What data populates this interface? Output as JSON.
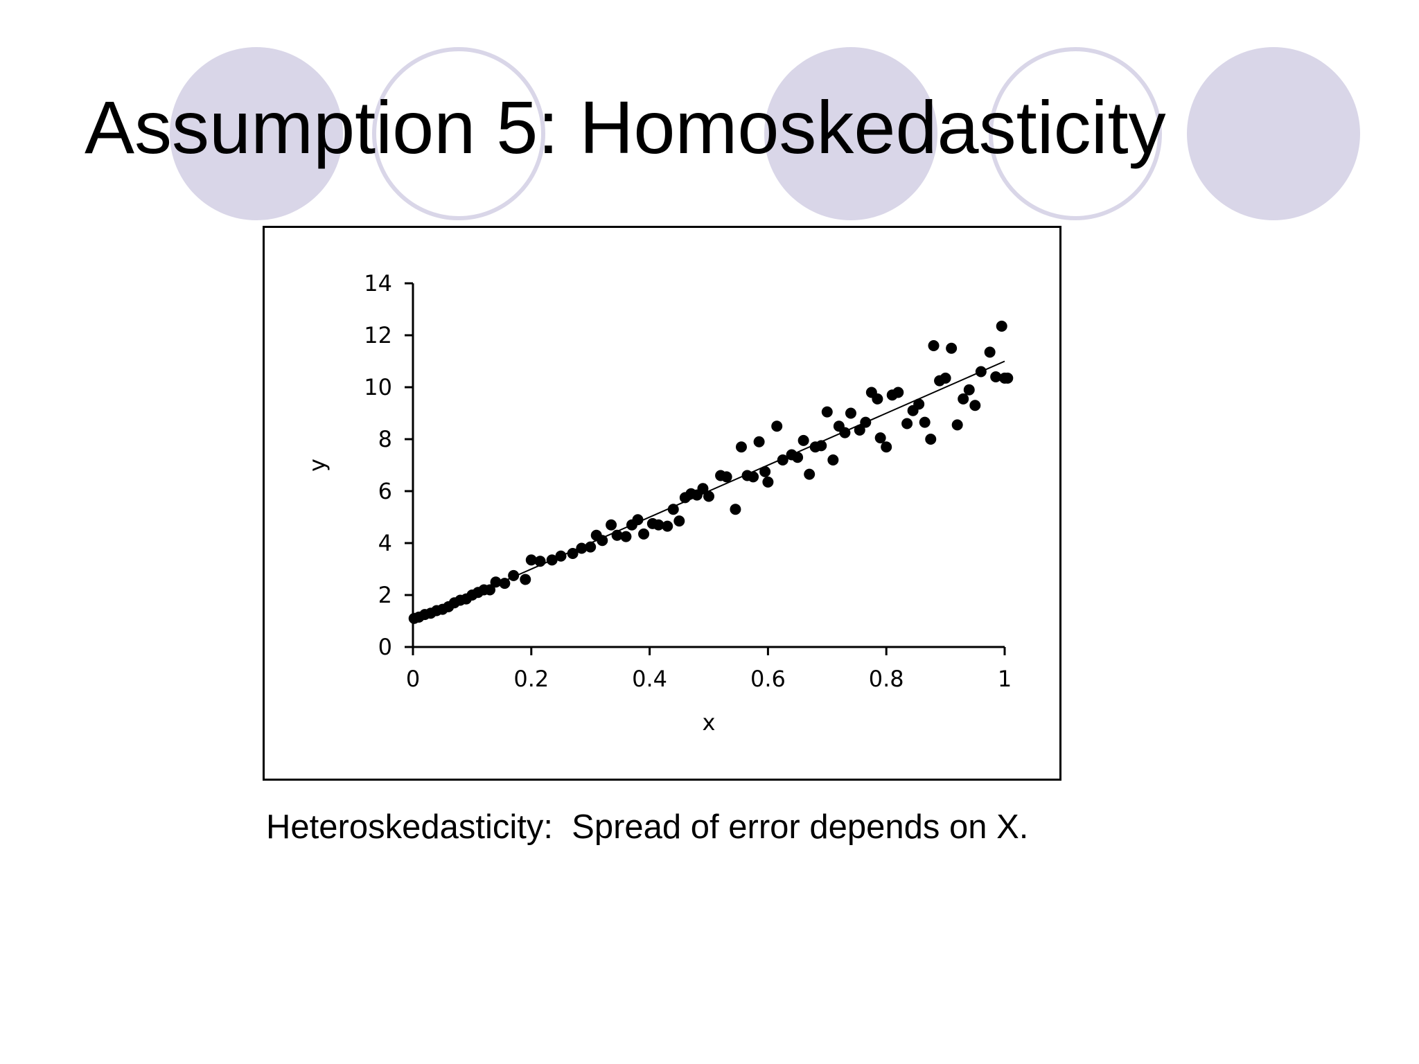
{
  "slide": {
    "title": "Assumption 5: Homoskedasticity",
    "caption": "Heteroskedasticity:  Spread of error depends on X.",
    "accent_color": "#d9d6e8"
  },
  "chart_data": {
    "type": "scatter",
    "title": "",
    "xlabel": "x",
    "ylabel": "y",
    "xlim": [
      0,
      1
    ],
    "ylim": [
      0,
      14
    ],
    "x_ticks": [
      "0",
      "0.2",
      "0.4",
      "0.6",
      "0.8",
      "1"
    ],
    "y_ticks": [
      "0",
      "2",
      "4",
      "6",
      "8",
      "10",
      "12",
      "14"
    ],
    "grid": false,
    "legend": "none",
    "fit_line": {
      "x": [
        0,
        1
      ],
      "y": [
        1,
        11
      ]
    },
    "points": [
      [
        0.002,
        1.1
      ],
      [
        0.01,
        1.15
      ],
      [
        0.02,
        1.25
      ],
      [
        0.03,
        1.3
      ],
      [
        0.04,
        1.4
      ],
      [
        0.05,
        1.45
      ],
      [
        0.06,
        1.55
      ],
      [
        0.07,
        1.7
      ],
      [
        0.08,
        1.8
      ],
      [
        0.09,
        1.85
      ],
      [
        0.1,
        2.0
      ],
      [
        0.11,
        2.1
      ],
      [
        0.12,
        2.2
      ],
      [
        0.13,
        2.2
      ],
      [
        0.14,
        2.5
      ],
      [
        0.155,
        2.45
      ],
      [
        0.17,
        2.75
      ],
      [
        0.19,
        2.6
      ],
      [
        0.2,
        3.35
      ],
      [
        0.215,
        3.3
      ],
      [
        0.235,
        3.35
      ],
      [
        0.25,
        3.5
      ],
      [
        0.27,
        3.6
      ],
      [
        0.285,
        3.8
      ],
      [
        0.3,
        3.85
      ],
      [
        0.31,
        4.3
      ],
      [
        0.32,
        4.1
      ],
      [
        0.335,
        4.7
      ],
      [
        0.345,
        4.3
      ],
      [
        0.36,
        4.25
      ],
      [
        0.37,
        4.7
      ],
      [
        0.38,
        4.9
      ],
      [
        0.39,
        4.35
      ],
      [
        0.405,
        4.75
      ],
      [
        0.415,
        4.7
      ],
      [
        0.43,
        4.65
      ],
      [
        0.44,
        5.3
      ],
      [
        0.45,
        4.85
      ],
      [
        0.46,
        5.75
      ],
      [
        0.47,
        5.9
      ],
      [
        0.48,
        5.85
      ],
      [
        0.49,
        6.1
      ],
      [
        0.5,
        5.8
      ],
      [
        0.52,
        6.6
      ],
      [
        0.53,
        6.55
      ],
      [
        0.545,
        5.3
      ],
      [
        0.555,
        7.7
      ],
      [
        0.565,
        6.6
      ],
      [
        0.575,
        6.55
      ],
      [
        0.585,
        7.9
      ],
      [
        0.595,
        6.75
      ],
      [
        0.6,
        6.35
      ],
      [
        0.615,
        8.5
      ],
      [
        0.625,
        7.2
      ],
      [
        0.64,
        7.4
      ],
      [
        0.65,
        7.3
      ],
      [
        0.66,
        7.95
      ],
      [
        0.67,
        6.65
      ],
      [
        0.68,
        7.7
      ],
      [
        0.69,
        7.75
      ],
      [
        0.7,
        9.05
      ],
      [
        0.71,
        7.2
      ],
      [
        0.72,
        8.5
      ],
      [
        0.73,
        8.25
      ],
      [
        0.74,
        9.0
      ],
      [
        0.755,
        8.35
      ],
      [
        0.765,
        8.65
      ],
      [
        0.775,
        9.8
      ],
      [
        0.785,
        9.55
      ],
      [
        0.79,
        8.05
      ],
      [
        0.8,
        7.7
      ],
      [
        0.81,
        9.7
      ],
      [
        0.82,
        9.8
      ],
      [
        0.835,
        8.6
      ],
      [
        0.845,
        9.1
      ],
      [
        0.855,
        9.35
      ],
      [
        0.865,
        8.65
      ],
      [
        0.875,
        8.0
      ],
      [
        0.88,
        11.6
      ],
      [
        0.89,
        10.25
      ],
      [
        0.9,
        10.35
      ],
      [
        0.91,
        11.5
      ],
      [
        0.92,
        8.55
      ],
      [
        0.93,
        9.55
      ],
      [
        0.94,
        9.9
      ],
      [
        0.95,
        9.3
      ],
      [
        0.96,
        10.6
      ],
      [
        0.975,
        11.35
      ],
      [
        0.985,
        10.4
      ],
      [
        0.995,
        12.35
      ],
      [
        1.0,
        10.35
      ],
      [
        1.005,
        10.35
      ]
    ]
  }
}
